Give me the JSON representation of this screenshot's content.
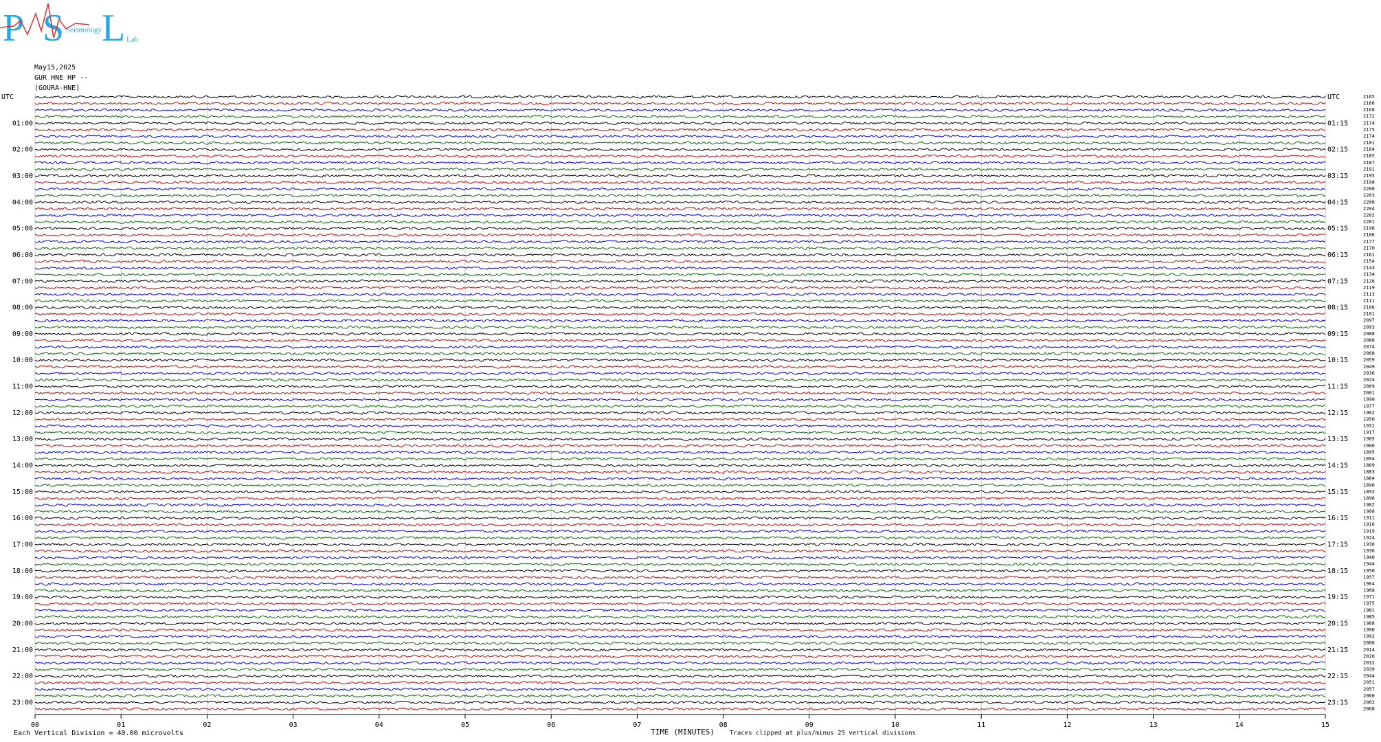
{
  "logo": {
    "letters": [
      "P",
      "S",
      "L"
    ],
    "small": [
      "Seismology",
      "Lab"
    ]
  },
  "chart_data": {
    "type": "helicorder",
    "header": [
      "May15,2025",
      "GUR HNE HP --",
      "(GOURA-HNE)"
    ],
    "left_labels": [
      "UTC",
      "01:00",
      "02:00",
      "03:00",
      "04:00",
      "05:00",
      "06:00",
      "07:00",
      "08:00",
      "09:00",
      "10:00",
      "11:00",
      "12:00",
      "13:00",
      "14:00",
      "15:00",
      "16:00",
      "17:00",
      "18:00",
      "19:00",
      "20:00",
      "21:00",
      "22:00",
      "23:00"
    ],
    "right_labels": [
      "UTC",
      "01:15",
      "02:15",
      "03:15",
      "04:15",
      "05:15",
      "06:15",
      "07:15",
      "08:15",
      "09:15",
      "10:15",
      "11:15",
      "12:15",
      "13:15",
      "14:15",
      "15:15",
      "16:15",
      "17:15",
      "18:15",
      "19:15",
      "20:15",
      "21:15",
      "22:15",
      "23:15"
    ],
    "trace_numbers": [
      "2165",
      "2166",
      "2168",
      "2172",
      "2174",
      "2175",
      "2174",
      "2181",
      "2184",
      "2185",
      "2187",
      "2191",
      "2195",
      "2198",
      "2200",
      "2203",
      "2206",
      "2204",
      "2202",
      "2201",
      "2196",
      "2186",
      "2177",
      "2170",
      "2161",
      "2154",
      "2143",
      "2134",
      "2126",
      "2119",
      "2113",
      "2111",
      "2106",
      "2101",
      "2097",
      "2093",
      "2088",
      "2080",
      "2074",
      "2068",
      "2059",
      "2049",
      "2036",
      "2024",
      "2009",
      "2001",
      "1990",
      "1977",
      "1962",
      "1950",
      "1931",
      "1917",
      "1905",
      "1900",
      "1895",
      "1894",
      "1889",
      "1883",
      "1884",
      "1890",
      "1892",
      "1896",
      "1902",
      "1908",
      "1911",
      "1916",
      "1919",
      "1924",
      "1930",
      "1936",
      "1940",
      "1944",
      "1950",
      "1957",
      "1964",
      "1968",
      "1971",
      "1975",
      "1981",
      "1985",
      "1988",
      "1990",
      "1992",
      "2006",
      "2014",
      "2020",
      "2032",
      "2039",
      "2044",
      "2051",
      "2057",
      "2060",
      "2062",
      "2068"
    ],
    "trace_colors": [
      "#000000",
      "#e00000",
      "#0000e0",
      "#007000"
    ],
    "xlim": [
      0,
      15
    ],
    "xticks": [
      {
        "value": 0,
        "label": "00"
      },
      {
        "value": 1,
        "label": "01"
      },
      {
        "value": 2,
        "label": "02"
      },
      {
        "value": 3,
        "label": "03"
      },
      {
        "value": 4,
        "label": "04"
      },
      {
        "value": 5,
        "label": "05"
      },
      {
        "value": 6,
        "label": "06"
      },
      {
        "value": 7,
        "label": "07"
      },
      {
        "value": 8,
        "label": "08"
      },
      {
        "value": 9,
        "label": "09"
      },
      {
        "value": 10,
        "label": "10"
      },
      {
        "value": 11,
        "label": "11"
      },
      {
        "value": 12,
        "label": "12"
      },
      {
        "value": 13,
        "label": "13"
      },
      {
        "value": 14,
        "label": "14"
      },
      {
        "value": 15,
        "label": "15"
      }
    ],
    "x_label": "TIME (MINUTES)",
    "scale_note": "Each Vertical Division =   40.00 microvolts",
    "clip_note": "Traces clipped at plus/minus 25 vertical divisions",
    "grid": true
  }
}
